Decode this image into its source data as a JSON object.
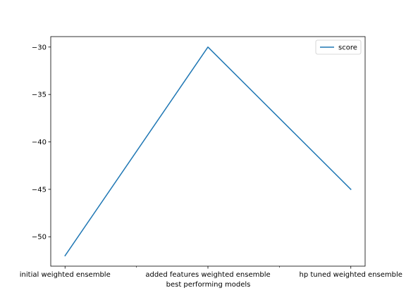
{
  "chart_data": {
    "type": "line",
    "title": "",
    "xlabel": "best performing models",
    "ylabel": "",
    "categories": [
      "initial weighted ensemble",
      "added features weighted ensemble",
      "hp tuned weighted ensemble"
    ],
    "series": [
      {
        "name": "score",
        "values": [
          -52.0,
          -30.0,
          -45.0
        ],
        "color": "#1f77b4"
      }
    ],
    "yticks": [
      -30,
      -35,
      -40,
      -45,
      -50
    ],
    "ytick_labels": [
      "−30",
      "−35",
      "−40",
      "−45",
      "−50"
    ],
    "ylim": [
      -53.1,
      -28.9
    ],
    "x_minor_ticks": [
      0.5,
      1.5
    ],
    "grid": false,
    "legend": {
      "position": "upper right"
    }
  }
}
